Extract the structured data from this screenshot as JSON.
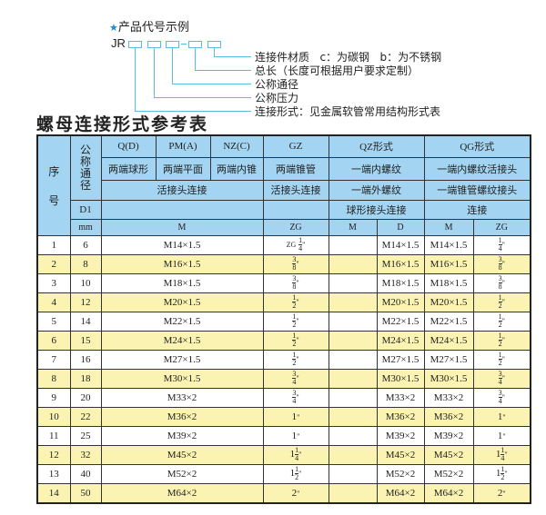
{
  "code_example": {
    "title": "产品代号示例",
    "prefix": "JR",
    "labels": [
      "连接件材质   c：为碳钢   b：为不锈钢",
      "总长（长度可根据用户要求定制）",
      "公称通径",
      "公称压力",
      "连接形式：见金属软管常用结构形式表"
    ]
  },
  "table_title": "螺母连接形式参考表",
  "header": {
    "seq": "序\n\n号",
    "dn": "公称通径",
    "types": [
      "Q(D)",
      "PM(A)",
      "NZ(C)",
      "GZ",
      "QZ形式",
      "QG形式"
    ],
    "desc1": [
      "两端球形",
      "两端平面",
      "两端内锥",
      "两端锥管",
      "一端内螺纹",
      "一端内螺纹活接头"
    ],
    "desc2": [
      "活接头连接",
      "活接头连接",
      "一端外螺纹",
      "一端锥管螺纹接头"
    ],
    "d1": "D1",
    "desc3": [
      "球形接头连接",
      "连接"
    ],
    "unit": "mm",
    "cols": [
      "M",
      "ZG",
      "M",
      "D",
      "M",
      "ZG"
    ]
  },
  "rows": [
    {
      "n": "1",
      "dn": "6",
      "m": "M14×1.5",
      "zg": {
        "pre": "ZG",
        "w": "",
        "num": "1",
        "den": "4"
      },
      "qz_d": "M14×1.5",
      "qg_m": "M14×1.5",
      "qg_zg": {
        "w": "",
        "num": "1",
        "den": "4"
      }
    },
    {
      "n": "2",
      "dn": "8",
      "m": "M16×1.5",
      "zg": {
        "w": "",
        "num": "3",
        "den": "8"
      },
      "qz_d": "M16×1.5",
      "qg_m": "M16×1.5",
      "qg_zg": {
        "w": "",
        "num": "3",
        "den": "8"
      }
    },
    {
      "n": "3",
      "dn": "10",
      "m": "M18×1.5",
      "zg": {
        "w": "",
        "num": "3",
        "den": "8"
      },
      "qz_d": "M18×1.5",
      "qg_m": "M18×1.5",
      "qg_zg": {
        "w": "",
        "num": "3",
        "den": "8"
      }
    },
    {
      "n": "4",
      "dn": "12",
      "m": "M20×1.5",
      "zg": {
        "w": "",
        "num": "1",
        "den": "2"
      },
      "qz_d": "M20×1.5",
      "qg_m": "M20×1.5",
      "qg_zg": {
        "w": "",
        "num": "1",
        "den": "2"
      }
    },
    {
      "n": "5",
      "dn": "14",
      "m": "M22×1.5",
      "zg": {
        "w": "",
        "num": "1",
        "den": "2"
      },
      "qz_d": "M22×1.5",
      "qg_m": "M22×1.5",
      "qg_zg": {
        "w": "",
        "num": "1",
        "den": "2"
      }
    },
    {
      "n": "6",
      "dn": "15",
      "m": "M24×1.5",
      "zg": {
        "w": "",
        "num": "1",
        "den": "2"
      },
      "qz_d": "M24×1.5",
      "qg_m": "M24×1.5",
      "qg_zg": {
        "w": "",
        "num": "1",
        "den": "2"
      }
    },
    {
      "n": "7",
      "dn": "16",
      "m": "M27×1.5",
      "zg": {
        "w": "",
        "num": "1",
        "den": "2"
      },
      "qz_d": "M27×1.5",
      "qg_m": "M27×1.5",
      "qg_zg": {
        "w": "",
        "num": "1",
        "den": "2"
      }
    },
    {
      "n": "8",
      "dn": "18",
      "m": "M30×1.5",
      "zg": {
        "w": "",
        "num": "3",
        "den": "4"
      },
      "qz_d": "M30×1.5",
      "qg_m": "M30×1.5",
      "qg_zg": {
        "w": "",
        "num": "3",
        "den": "4"
      }
    },
    {
      "n": "9",
      "dn": "20",
      "m": "M33×2",
      "zg": {
        "w": "",
        "num": "3",
        "den": "4"
      },
      "qz_d": "M33×2",
      "qg_m": "M33×2",
      "qg_zg": {
        "w": "",
        "num": "3",
        "den": "4"
      }
    },
    {
      "n": "10",
      "dn": "22",
      "m": "M36×2",
      "zg": {
        "w": "1"
      },
      "qz_d": "M36×2",
      "qg_m": "M36×2",
      "qg_zg": {
        "w": "1"
      }
    },
    {
      "n": "11",
      "dn": "25",
      "m": "M39×2",
      "zg": {
        "w": "1"
      },
      "qz_d": "M39×2",
      "qg_m": "M39×2",
      "qg_zg": {
        "w": "1"
      }
    },
    {
      "n": "12",
      "dn": "32",
      "m": "M45×2",
      "zg": {
        "w": "1",
        "num": "1",
        "den": "4"
      },
      "qz_d": "M45×2",
      "qg_m": "M45×2",
      "qg_zg": {
        "w": "1",
        "num": "1",
        "den": "4"
      }
    },
    {
      "n": "13",
      "dn": "40",
      "m": "M52×2",
      "zg": {
        "w": "1",
        "num": "1",
        "den": "2"
      },
      "qz_d": "M52×2",
      "qg_m": "M52×2",
      "qg_zg": {
        "w": "1",
        "num": "1",
        "den": "2"
      }
    },
    {
      "n": "14",
      "dn": "50",
      "m": "M64×2",
      "zg": {
        "w": "2"
      },
      "qz_d": "M64×2",
      "qg_m": "M64×2",
      "qg_zg": {
        "w": "2"
      }
    }
  ],
  "colors": {
    "header_bg": "#a3d5f2",
    "alt_row_bg": "#fbf3b1",
    "diagram_line": "#58bde0"
  }
}
